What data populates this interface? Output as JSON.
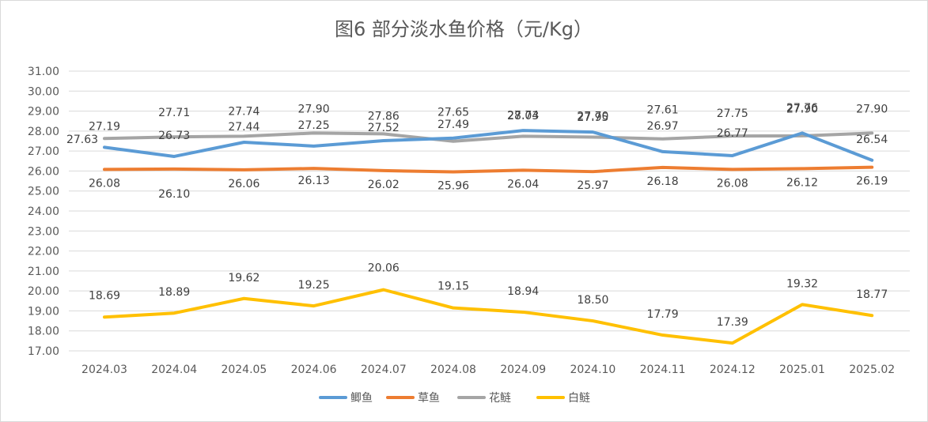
{
  "chart_data": {
    "type": "line",
    "title": "图6  部分淡水鱼价格（元/Kg）",
    "categories": [
      "2024.03",
      "2024.04",
      "2024.05",
      "2024.06",
      "2024.07",
      "2024.08",
      "2024.09",
      "2024.10",
      "2024.11",
      "2024.12",
      "2025.01",
      "2025.02"
    ],
    "ylim": [
      17.0,
      31.0
    ],
    "yticks": [
      "17.00",
      "18.00",
      "19.00",
      "20.00",
      "21.00",
      "22.00",
      "23.00",
      "24.00",
      "25.00",
      "26.00",
      "27.00",
      "28.00",
      "29.00",
      "30.00",
      "31.00"
    ],
    "grid": true,
    "legend_position": "bottom",
    "series": [
      {
        "name": "鲫鱼",
        "color": "#5b9bd5",
        "values": [
          27.19,
          26.73,
          27.44,
          27.25,
          27.52,
          27.65,
          28.03,
          27.95,
          26.97,
          26.77,
          27.9,
          26.54
        ],
        "labels": [
          "27.19",
          "26.73",
          "27.44",
          "27.25",
          "27.52",
          "27.65",
          "28.03",
          "27.95",
          "26.97",
          "26.77",
          "27.90",
          "26.54"
        ]
      },
      {
        "name": "草鱼",
        "color": "#ed7d31",
        "values": [
          26.08,
          26.1,
          26.06,
          26.13,
          26.02,
          25.96,
          26.04,
          25.97,
          26.18,
          26.08,
          26.12,
          26.19
        ],
        "labels": [
          "26.08",
          "26.10",
          "26.06",
          "26.13",
          "26.02",
          "25.96",
          "26.04",
          "25.97",
          "26.18",
          "26.08",
          "26.12",
          "26.19"
        ]
      },
      {
        "name": "花鲢",
        "color": "#a5a5a5",
        "values": [
          27.63,
          27.71,
          27.74,
          27.9,
          27.86,
          27.49,
          27.74,
          27.7,
          27.61,
          27.75,
          27.76,
          27.9
        ],
        "labels": [
          "27.63",
          "27.71",
          "27.74",
          "27.90",
          "27.86",
          "27.49",
          "27.74",
          "27.70",
          "27.61",
          "27.75",
          "27.76",
          "27.90"
        ]
      },
      {
        "name": "白鲢",
        "color": "#ffc000",
        "values": [
          18.69,
          18.89,
          19.62,
          19.25,
          20.06,
          19.15,
          18.94,
          18.5,
          17.79,
          17.39,
          19.32,
          18.77
        ],
        "labels": [
          "18.69",
          "18.89",
          "19.62",
          "19.25",
          "20.06",
          "19.15",
          "18.94",
          "18.50",
          "17.79",
          "17.39",
          "19.32",
          "18.77"
        ]
      }
    ]
  }
}
